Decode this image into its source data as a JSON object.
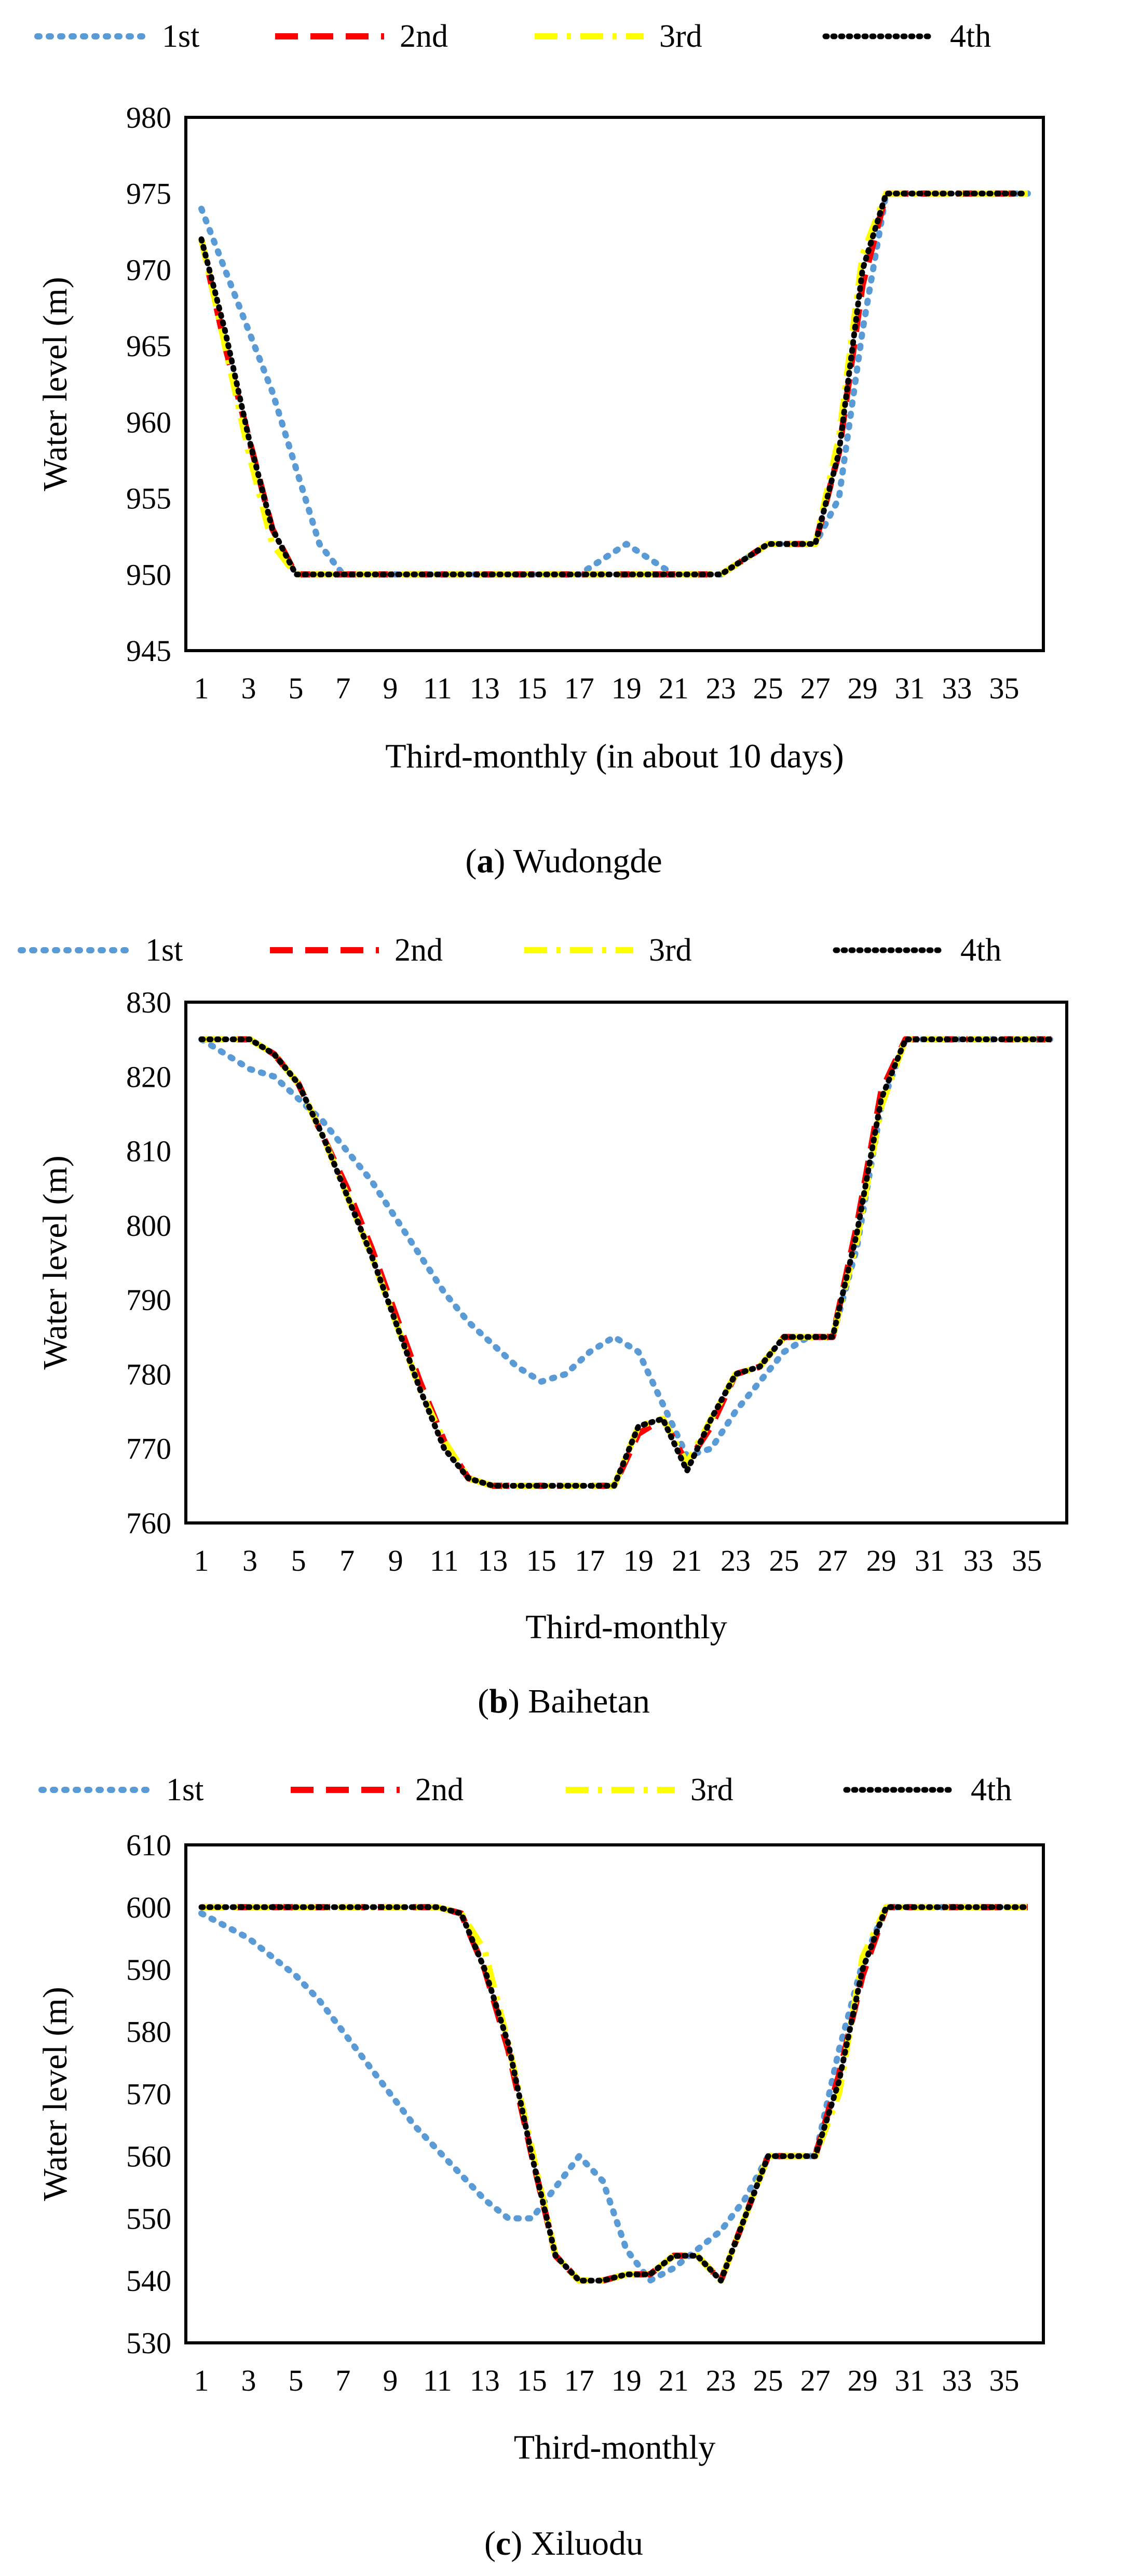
{
  "series_styles": [
    {
      "name": "1st",
      "color": "#5b9bd5",
      "dash": "dotted"
    },
    {
      "name": "2nd",
      "color": "#ff0000",
      "dash": "dashed"
    },
    {
      "name": "3rd",
      "color": "#ffff00",
      "dash": "dashdot"
    },
    {
      "name": "4th",
      "color": "#000000",
      "dash": "dotted-dark"
    }
  ],
  "chart_data": [
    {
      "type": "line",
      "caption_letter": "a",
      "caption_text": "Wudongde",
      "xlabel": "Third-monthly (in about 10 days)",
      "ylabel": "Water level (m)",
      "ylim": [
        945,
        980
      ],
      "yticks": [
        945,
        950,
        955,
        960,
        965,
        970,
        975,
        980
      ],
      "xlim": [
        1,
        36
      ],
      "xtick_labels": [
        "1",
        "3",
        "5",
        "7",
        "9",
        "11",
        "13",
        "15",
        "17",
        "19",
        "21",
        "23",
        "25",
        "27",
        "29",
        "31",
        "33",
        "35"
      ],
      "legend": [
        "1st",
        "2nd",
        "3rd",
        "4th"
      ],
      "series": [
        {
          "name": "1st",
          "x": [
            1,
            2,
            3,
            4,
            5,
            6,
            7,
            8,
            9,
            10,
            11,
            12,
            13,
            14,
            15,
            16,
            17,
            18,
            19,
            20,
            21,
            22,
            23,
            24,
            25,
            26,
            27,
            28,
            29,
            30,
            31,
            32,
            33,
            34,
            35,
            36
          ],
          "values": [
            974,
            970,
            966,
            962,
            957,
            952,
            950,
            950,
            950,
            950,
            950,
            950,
            950,
            950,
            950,
            950,
            950,
            951,
            952,
            951,
            950,
            950,
            950,
            951,
            952,
            952,
            952,
            955,
            966,
            975,
            975,
            975,
            975,
            975,
            975,
            975
          ]
        },
        {
          "name": "2nd",
          "x": [
            1,
            2,
            3,
            4,
            5,
            6,
            7,
            8,
            9,
            10,
            11,
            12,
            13,
            14,
            15,
            16,
            17,
            18,
            19,
            20,
            21,
            22,
            23,
            24,
            25,
            26,
            27,
            28,
            29,
            30,
            31,
            32,
            33,
            34,
            35,
            36
          ],
          "values": [
            972,
            965,
            959,
            953,
            950,
            950,
            950,
            950,
            950,
            950,
            950,
            950,
            950,
            950,
            950,
            950,
            950,
            950,
            950,
            950,
            950,
            950,
            950,
            951,
            952,
            952,
            952,
            958,
            969,
            975,
            975,
            975,
            975,
            975,
            975,
            975
          ]
        },
        {
          "name": "3rd",
          "x": [
            1,
            2,
            3,
            4,
            5,
            6,
            7,
            8,
            9,
            10,
            11,
            12,
            13,
            14,
            15,
            16,
            17,
            18,
            19,
            20,
            21,
            22,
            23,
            24,
            25,
            26,
            27,
            28,
            29,
            30,
            31,
            32,
            33,
            34,
            35,
            36
          ],
          "values": [
            972,
            965,
            958,
            952,
            950,
            950,
            950,
            950,
            950,
            950,
            950,
            950,
            950,
            950,
            950,
            950,
            950,
            950,
            950,
            950,
            950,
            950,
            950,
            951,
            952,
            952,
            952,
            959,
            971,
            975,
            975,
            975,
            975,
            975,
            975,
            975
          ]
        },
        {
          "name": "4th",
          "x": [
            1,
            2,
            3,
            4,
            5,
            6,
            7,
            8,
            9,
            10,
            11,
            12,
            13,
            14,
            15,
            16,
            17,
            18,
            19,
            20,
            21,
            22,
            23,
            24,
            25,
            26,
            27,
            28,
            29,
            30,
            31,
            32,
            33,
            34,
            35,
            36
          ],
          "values": [
            972,
            966,
            959,
            953,
            950,
            950,
            950,
            950,
            950,
            950,
            950,
            950,
            950,
            950,
            950,
            950,
            950,
            950,
            950,
            950,
            950,
            950,
            950,
            951,
            952,
            952,
            952,
            958,
            970,
            975,
            975,
            975,
            975,
            975,
            975,
            975
          ]
        }
      ]
    },
    {
      "type": "line",
      "caption_letter": "b",
      "caption_text": "Baihetan",
      "xlabel": "Third-monthly",
      "ylabel": "Water level (m)",
      "ylim": [
        760,
        830
      ],
      "yticks": [
        760,
        770,
        780,
        790,
        800,
        810,
        820,
        830
      ],
      "xlim": [
        1,
        36
      ],
      "xtick_labels": [
        "1",
        "3",
        "5",
        "7",
        "9",
        "11",
        "13",
        "15",
        "17",
        "19",
        "21",
        "23",
        "25",
        "27",
        "29",
        "31",
        "33",
        "35"
      ],
      "legend": [
        "1st",
        "2nd",
        "3rd",
        "4th"
      ],
      "series": [
        {
          "name": "1st",
          "x": [
            1,
            2,
            3,
            4,
            5,
            6,
            7,
            8,
            9,
            10,
            11,
            12,
            13,
            14,
            15,
            16,
            17,
            18,
            19,
            20,
            21,
            22,
            23,
            24,
            25,
            26,
            27,
            28,
            29,
            30,
            31,
            32,
            33,
            34,
            35,
            36
          ],
          "values": [
            825,
            823,
            821,
            820,
            817,
            814,
            810,
            806,
            801,
            796,
            791,
            787,
            784,
            781,
            779,
            780,
            783,
            785,
            783,
            776,
            769,
            770,
            775,
            779,
            783,
            785,
            785,
            797,
            816,
            825,
            825,
            825,
            825,
            825,
            825,
            825
          ]
        },
        {
          "name": "2nd",
          "x": [
            1,
            2,
            3,
            4,
            5,
            6,
            7,
            8,
            9,
            10,
            11,
            12,
            13,
            14,
            15,
            16,
            17,
            18,
            19,
            20,
            21,
            22,
            23,
            24,
            25,
            26,
            27,
            28,
            29,
            30,
            31,
            32,
            33,
            34,
            35,
            36
          ],
          "values": [
            825,
            825,
            825,
            823,
            819,
            812,
            805,
            797,
            788,
            779,
            771,
            766,
            765,
            765,
            765,
            765,
            765,
            765,
            772,
            774,
            768,
            773,
            780,
            781,
            785,
            785,
            785,
            800,
            818,
            825,
            825,
            825,
            825,
            825,
            825,
            825
          ]
        },
        {
          "name": "3rd",
          "x": [
            1,
            2,
            3,
            4,
            5,
            6,
            7,
            8,
            9,
            10,
            11,
            12,
            13,
            14,
            15,
            16,
            17,
            18,
            19,
            20,
            21,
            22,
            23,
            24,
            25,
            26,
            27,
            28,
            29,
            30,
            31,
            32,
            33,
            34,
            35,
            36
          ],
          "values": [
            825,
            825,
            825,
            823,
            819,
            812,
            804,
            796,
            787,
            778,
            771,
            766,
            765,
            765,
            765,
            765,
            765,
            765,
            773,
            774,
            768,
            774,
            780,
            781,
            785,
            785,
            785,
            798,
            816,
            825,
            825,
            825,
            825,
            825,
            825,
            825
          ]
        },
        {
          "name": "4th",
          "x": [
            1,
            2,
            3,
            4,
            5,
            6,
            7,
            8,
            9,
            10,
            11,
            12,
            13,
            14,
            15,
            16,
            17,
            18,
            19,
            20,
            21,
            22,
            23,
            24,
            25,
            26,
            27,
            28,
            29,
            30,
            31,
            32,
            33,
            34,
            35,
            36
          ],
          "values": [
            825,
            825,
            825,
            823,
            819,
            812,
            804,
            796,
            787,
            778,
            770,
            766,
            765,
            765,
            765,
            765,
            765,
            765,
            773,
            774,
            767,
            774,
            780,
            781,
            785,
            785,
            785,
            799,
            817,
            825,
            825,
            825,
            825,
            825,
            825,
            825
          ]
        }
      ]
    },
    {
      "type": "line",
      "caption_letter": "c",
      "caption_text": "Xiluodu",
      "xlabel": "Third-monthly",
      "ylabel": "Water level (m)",
      "ylim": [
        530,
        610
      ],
      "yticks": [
        530,
        540,
        550,
        560,
        570,
        580,
        590,
        600,
        610
      ],
      "xlim": [
        1,
        36
      ],
      "xtick_labels": [
        "1",
        "3",
        "5",
        "7",
        "9",
        "11",
        "13",
        "15",
        "17",
        "19",
        "21",
        "23",
        "25",
        "27",
        "29",
        "31",
        "33",
        "35"
      ],
      "legend": [
        "1st",
        "2nd",
        "3rd",
        "4th"
      ],
      "series": [
        {
          "name": "1st",
          "x": [
            1,
            2,
            3,
            4,
            5,
            6,
            7,
            8,
            9,
            10,
            11,
            12,
            13,
            14,
            15,
            16,
            17,
            18,
            19,
            20,
            21,
            22,
            23,
            24,
            25,
            26,
            27,
            28,
            29,
            30,
            31,
            32,
            33,
            34,
            35,
            36
          ],
          "values": [
            599,
            597,
            595,
            592,
            589,
            585,
            580,
            575,
            570,
            565,
            561,
            557,
            553,
            550,
            550,
            555,
            560,
            556,
            545,
            540,
            542,
            545,
            548,
            553,
            560,
            560,
            560,
            577,
            591,
            600,
            600,
            600,
            600,
            600,
            600,
            600
          ]
        },
        {
          "name": "2nd",
          "x": [
            1,
            2,
            3,
            4,
            5,
            6,
            7,
            8,
            9,
            10,
            11,
            12,
            13,
            14,
            15,
            16,
            17,
            18,
            19,
            20,
            21,
            22,
            23,
            24,
            25,
            26,
            27,
            28,
            29,
            30,
            31,
            32,
            33,
            34,
            35,
            36
          ],
          "values": [
            600,
            600,
            600,
            600,
            600,
            600,
            600,
            600,
            600,
            600,
            600,
            599,
            590,
            577,
            560,
            544,
            540,
            540,
            541,
            541,
            544,
            544,
            540,
            550,
            560,
            560,
            560,
            573,
            589,
            600,
            600,
            600,
            600,
            600,
            600,
            600
          ]
        },
        {
          "name": "3rd",
          "x": [
            1,
            2,
            3,
            4,
            5,
            6,
            7,
            8,
            9,
            10,
            11,
            12,
            13,
            14,
            15,
            16,
            17,
            18,
            19,
            20,
            21,
            22,
            23,
            24,
            25,
            26,
            27,
            28,
            29,
            30,
            31,
            32,
            33,
            34,
            35,
            36
          ],
          "values": [
            600,
            600,
            600,
            600,
            600,
            600,
            600,
            600,
            600,
            600,
            600,
            599,
            593,
            578,
            561,
            544,
            540,
            540,
            541,
            541,
            544,
            544,
            540,
            550,
            560,
            560,
            560,
            570,
            592,
            600,
            600,
            600,
            600,
            600,
            600,
            600
          ]
        },
        {
          "name": "4th",
          "x": [
            1,
            2,
            3,
            4,
            5,
            6,
            7,
            8,
            9,
            10,
            11,
            12,
            13,
            14,
            15,
            16,
            17,
            18,
            19,
            20,
            21,
            22,
            23,
            24,
            25,
            26,
            27,
            28,
            29,
            30,
            31,
            32,
            33,
            34,
            35,
            36
          ],
          "values": [
            600,
            600,
            600,
            600,
            600,
            600,
            600,
            600,
            600,
            600,
            600,
            599,
            590,
            578,
            560,
            544,
            540,
            540,
            541,
            541,
            544,
            544,
            540,
            550,
            560,
            560,
            560,
            572,
            590,
            600,
            600,
            600,
            600,
            600,
            600,
            600
          ]
        }
      ]
    }
  ]
}
